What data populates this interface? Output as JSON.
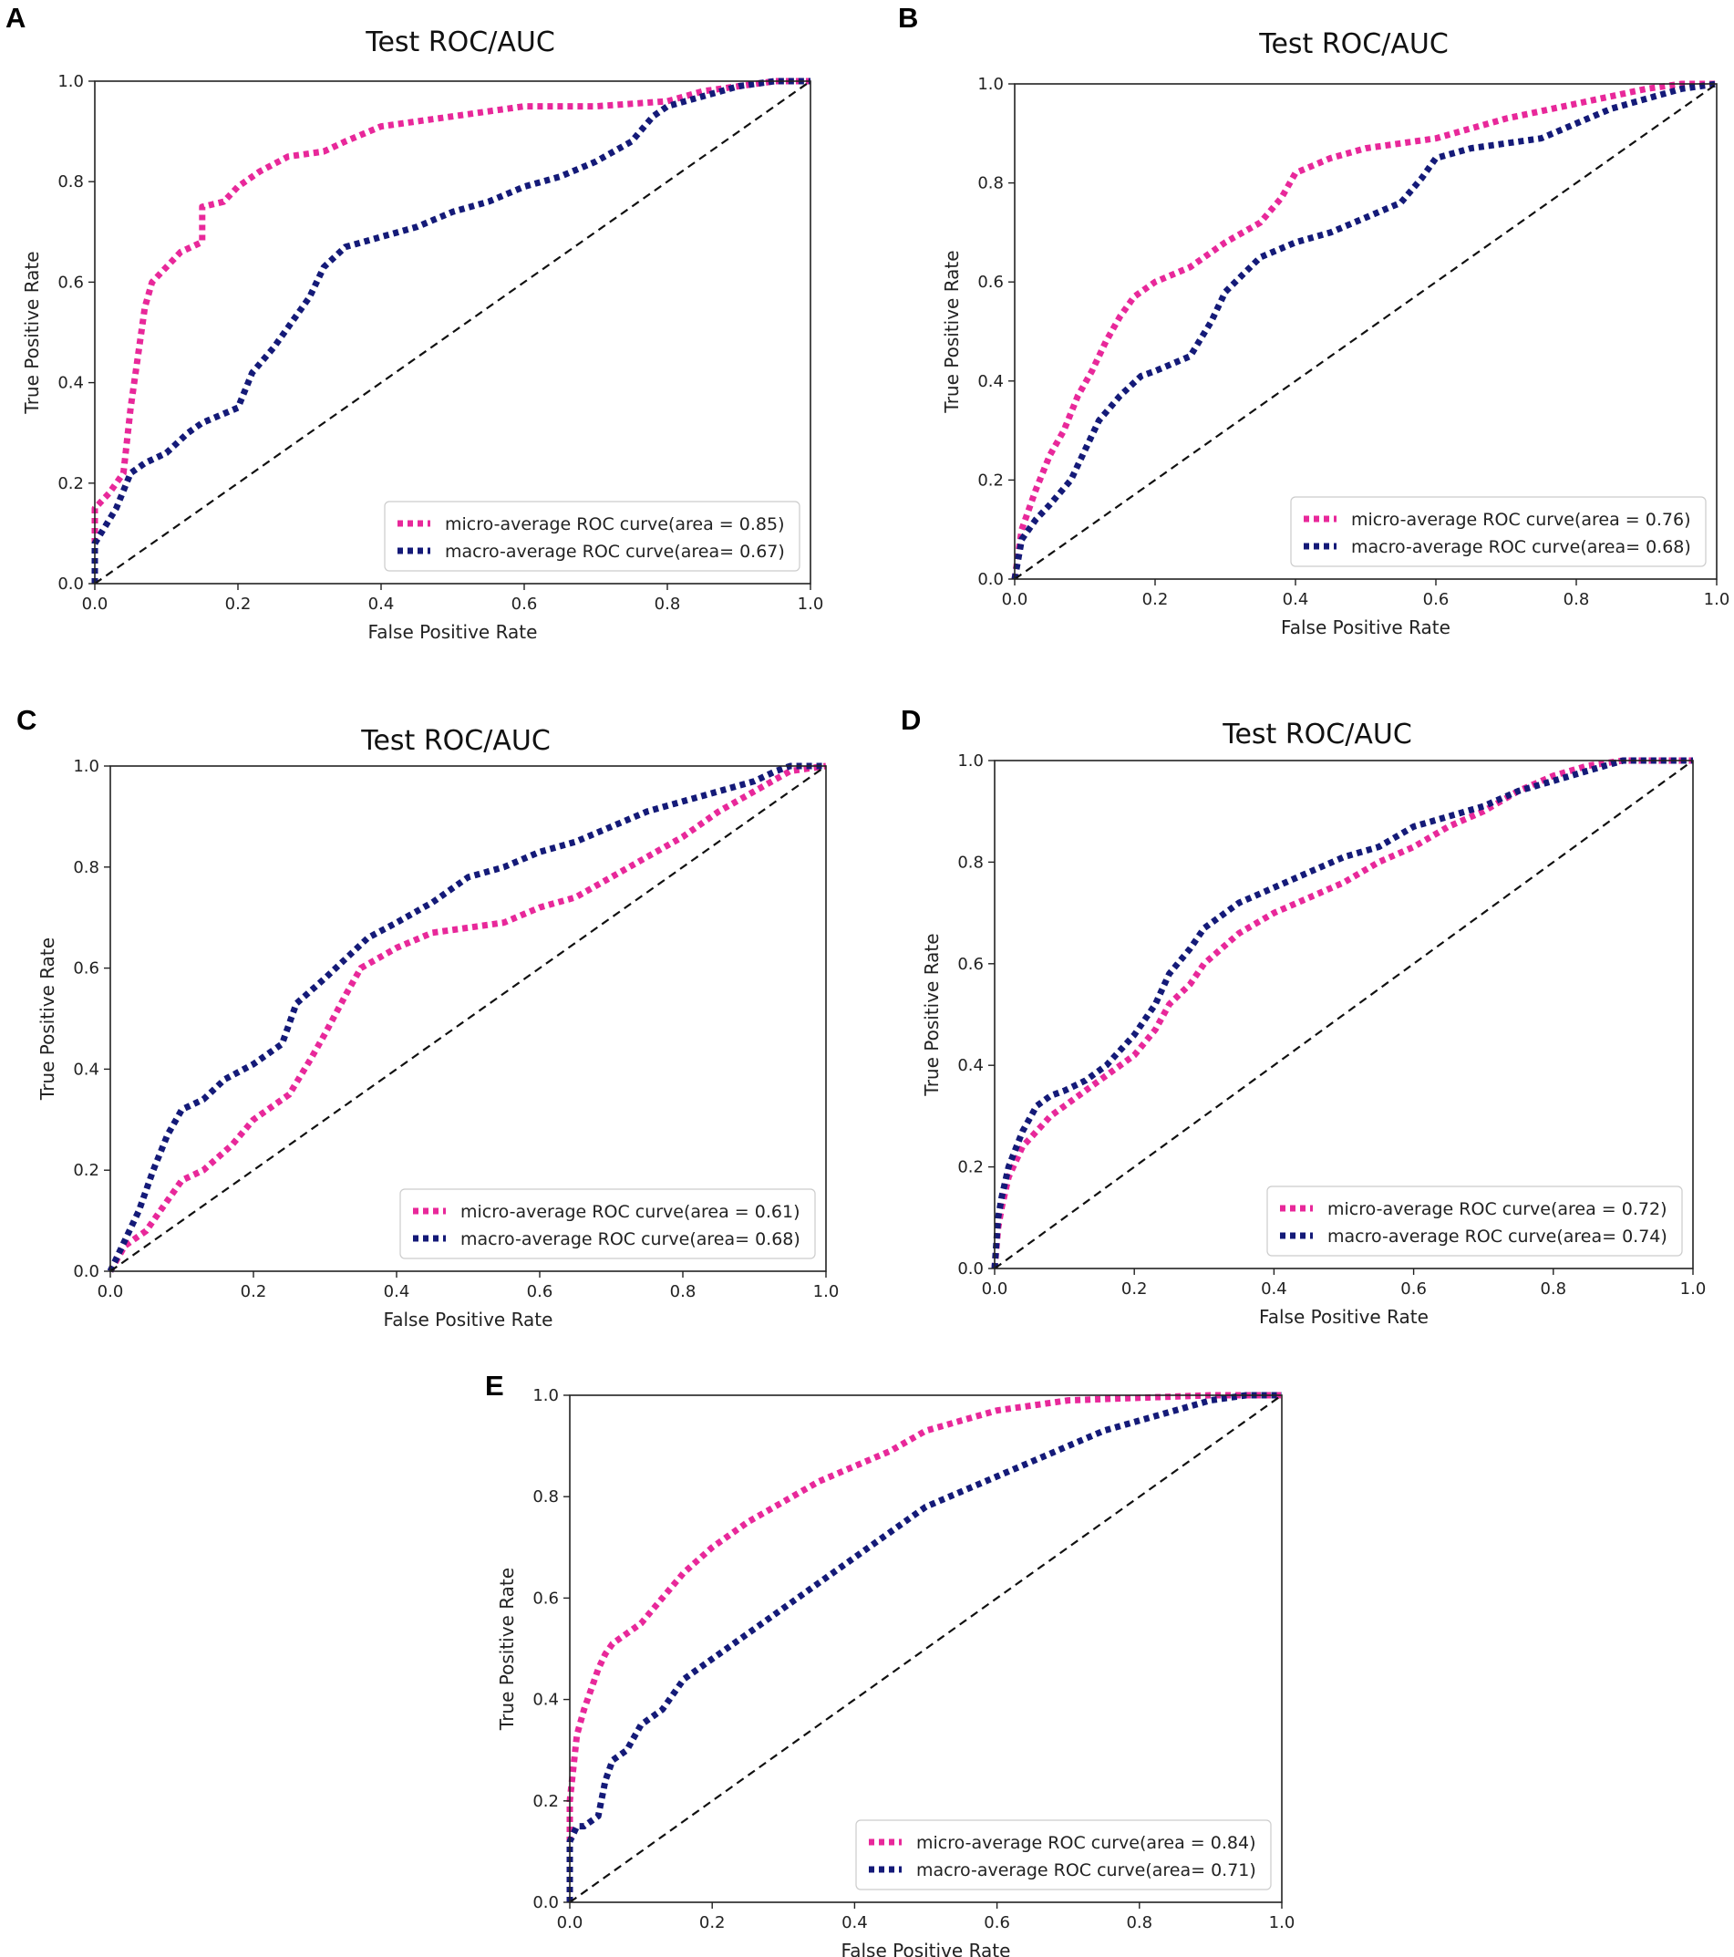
{
  "figure": {
    "description_panels": [
      "A",
      "B",
      "C",
      "D",
      "E"
    ]
  },
  "colors": {
    "micro": "#e8289a",
    "macro": "#141a78",
    "diagonal": "#111111",
    "frame": "#222222"
  },
  "chart_data": [
    {
      "panel": "A",
      "type": "line",
      "title": "Test ROC/AUC",
      "xlabel": "False Positive Rate",
      "ylabel": "True Positive Rate",
      "xlim": [
        0,
        1
      ],
      "ylim": [
        0,
        1
      ],
      "xticks": [
        "0.0",
        "0.2",
        "0.4",
        "0.6",
        "0.8",
        "1.0"
      ],
      "yticks": [
        "0.0",
        "0.2",
        "0.4",
        "0.6",
        "0.8",
        "1.0"
      ],
      "legend_position": "lower-right",
      "series": [
        {
          "name": "micro-average ROC curve(area = 0.85)",
          "style": "dotted",
          "x": [
            0,
            0,
            0.02,
            0.04,
            0.05,
            0.06,
            0.07,
            0.08,
            0.1,
            0.12,
            0.15,
            0.15,
            0.18,
            0.2,
            0.23,
            0.27,
            0.32,
            0.35,
            0.4,
            0.45,
            0.5,
            0.6,
            0.7,
            0.8,
            0.85,
            0.9,
            0.95,
            1.0
          ],
          "y": [
            0,
            0.15,
            0.18,
            0.22,
            0.35,
            0.45,
            0.55,
            0.6,
            0.63,
            0.66,
            0.68,
            0.75,
            0.76,
            0.79,
            0.82,
            0.85,
            0.86,
            0.88,
            0.91,
            0.92,
            0.93,
            0.95,
            0.95,
            0.96,
            0.98,
            0.99,
            1.0,
            1.0
          ]
        },
        {
          "name": "macro-average ROC curve(area= 0.67)",
          "style": "dotted",
          "x": [
            0,
            0,
            0.03,
            0.05,
            0.07,
            0.1,
            0.13,
            0.15,
            0.2,
            0.22,
            0.25,
            0.3,
            0.32,
            0.35,
            0.4,
            0.45,
            0.5,
            0.55,
            0.6,
            0.65,
            0.7,
            0.75,
            0.78,
            0.8,
            0.85,
            0.9,
            0.95,
            1.0
          ],
          "y": [
            0,
            0.08,
            0.15,
            0.22,
            0.24,
            0.26,
            0.3,
            0.32,
            0.35,
            0.42,
            0.47,
            0.57,
            0.63,
            0.67,
            0.69,
            0.71,
            0.74,
            0.76,
            0.79,
            0.81,
            0.84,
            0.88,
            0.93,
            0.95,
            0.97,
            0.99,
            1.0,
            1.0
          ]
        },
        {
          "name": "chance",
          "style": "dashed",
          "x": [
            0,
            1
          ],
          "y": [
            0,
            1
          ]
        }
      ]
    },
    {
      "panel": "B",
      "type": "line",
      "title": "Test ROC/AUC",
      "xlabel": "False Positive Rate",
      "ylabel": "True Positive Rate",
      "xlim": [
        0,
        1
      ],
      "ylim": [
        0,
        1
      ],
      "xticks": [
        "0.0",
        "0.2",
        "0.4",
        "0.6",
        "0.8",
        "1.0"
      ],
      "yticks": [
        "0.0",
        "0.2",
        "0.4",
        "0.6",
        "0.8",
        "1.0"
      ],
      "legend_position": "lower-right",
      "series": [
        {
          "name": "micro-average ROC curve(area = 0.76)",
          "style": "dotted",
          "x": [
            0,
            0.01,
            0.03,
            0.05,
            0.07,
            0.09,
            0.11,
            0.13,
            0.15,
            0.17,
            0.2,
            0.25,
            0.3,
            0.35,
            0.38,
            0.4,
            0.45,
            0.5,
            0.55,
            0.6,
            0.7,
            0.8,
            0.9,
            0.95,
            1.0
          ],
          "y": [
            0,
            0.1,
            0.18,
            0.25,
            0.3,
            0.37,
            0.42,
            0.48,
            0.53,
            0.57,
            0.6,
            0.63,
            0.68,
            0.72,
            0.77,
            0.82,
            0.85,
            0.87,
            0.88,
            0.89,
            0.93,
            0.96,
            0.99,
            1.0,
            1.0
          ]
        },
        {
          "name": "macro-average ROC curve(area= 0.68)",
          "style": "dotted",
          "x": [
            0,
            0.01,
            0.03,
            0.05,
            0.08,
            0.1,
            0.12,
            0.15,
            0.18,
            0.2,
            0.25,
            0.28,
            0.3,
            0.35,
            0.4,
            0.45,
            0.5,
            0.55,
            0.58,
            0.6,
            0.65,
            0.7,
            0.75,
            0.8,
            0.85,
            0.9,
            0.95,
            1.0
          ],
          "y": [
            0,
            0.08,
            0.12,
            0.15,
            0.2,
            0.26,
            0.32,
            0.37,
            0.41,
            0.42,
            0.45,
            0.52,
            0.58,
            0.65,
            0.68,
            0.7,
            0.73,
            0.76,
            0.81,
            0.85,
            0.87,
            0.88,
            0.89,
            0.92,
            0.95,
            0.97,
            0.99,
            1.0
          ]
        },
        {
          "name": "chance",
          "style": "dashed",
          "x": [
            0,
            1
          ],
          "y": [
            0,
            1
          ]
        }
      ]
    },
    {
      "panel": "C",
      "type": "line",
      "title": "Test ROC/AUC",
      "xlabel": "False Positive Rate",
      "ylabel": "True Positive Rate",
      "xlim": [
        0,
        1
      ],
      "ylim": [
        0,
        1
      ],
      "xticks": [
        "0.0",
        "0.2",
        "0.4",
        "0.6",
        "0.8",
        "1.0"
      ],
      "yticks": [
        "0.0",
        "0.2",
        "0.4",
        "0.6",
        "0.8",
        "1.0"
      ],
      "legend_position": "lower-right",
      "series": [
        {
          "name": "micro-average ROC curve(area = 0.61)",
          "style": "dotted",
          "x": [
            0,
            0.02,
            0.05,
            0.08,
            0.1,
            0.13,
            0.17,
            0.2,
            0.25,
            0.28,
            0.3,
            0.33,
            0.35,
            0.4,
            0.45,
            0.5,
            0.55,
            0.6,
            0.65,
            0.7,
            0.75,
            0.8,
            0.85,
            0.9,
            0.95,
            1.0
          ],
          "y": [
            0,
            0.05,
            0.08,
            0.14,
            0.18,
            0.2,
            0.25,
            0.3,
            0.35,
            0.42,
            0.47,
            0.55,
            0.6,
            0.64,
            0.67,
            0.68,
            0.69,
            0.72,
            0.74,
            0.78,
            0.82,
            0.86,
            0.91,
            0.95,
            0.99,
            1.0
          ]
        },
        {
          "name": "macro-average ROC curve(area= 0.68)",
          "style": "dotted",
          "x": [
            0,
            0.02,
            0.04,
            0.06,
            0.08,
            0.1,
            0.13,
            0.16,
            0.2,
            0.24,
            0.26,
            0.3,
            0.33,
            0.36,
            0.4,
            0.45,
            0.5,
            0.55,
            0.6,
            0.65,
            0.7,
            0.75,
            0.8,
            0.85,
            0.9,
            0.93,
            0.95,
            1.0
          ],
          "y": [
            0,
            0.06,
            0.12,
            0.2,
            0.27,
            0.32,
            0.34,
            0.38,
            0.41,
            0.45,
            0.53,
            0.58,
            0.62,
            0.66,
            0.69,
            0.73,
            0.78,
            0.8,
            0.83,
            0.85,
            0.88,
            0.91,
            0.93,
            0.95,
            0.97,
            0.99,
            1.0,
            1.0
          ]
        },
        {
          "name": "chance",
          "style": "dashed",
          "x": [
            0,
            1
          ],
          "y": [
            0,
            1
          ]
        }
      ]
    },
    {
      "panel": "D",
      "type": "line",
      "title": "Test ROC/AUC",
      "xlabel": "False Positive Rate",
      "ylabel": "True Positive Rate",
      "xlim": [
        0,
        1
      ],
      "ylim": [
        0,
        1
      ],
      "xticks": [
        "0.0",
        "0.2",
        "0.4",
        "0.6",
        "0.8",
        "1.0"
      ],
      "yticks": [
        "0.0",
        "0.2",
        "0.4",
        "0.6",
        "0.8",
        "1.0"
      ],
      "legend_position": "lower-right",
      "series": [
        {
          "name": "micro-average ROC curve(area = 0.72)",
          "style": "dotted",
          "x": [
            0,
            0.005,
            0.01,
            0.02,
            0.04,
            0.06,
            0.08,
            0.1,
            0.13,
            0.16,
            0.2,
            0.23,
            0.25,
            0.28,
            0.3,
            0.35,
            0.4,
            0.45,
            0.5,
            0.55,
            0.6,
            0.65,
            0.7,
            0.75,
            0.8,
            0.85,
            0.9,
            0.95,
            1.0
          ],
          "y": [
            0,
            0.08,
            0.12,
            0.18,
            0.24,
            0.27,
            0.3,
            0.32,
            0.35,
            0.38,
            0.42,
            0.47,
            0.52,
            0.56,
            0.6,
            0.66,
            0.7,
            0.73,
            0.76,
            0.8,
            0.83,
            0.87,
            0.9,
            0.94,
            0.97,
            0.99,
            1.0,
            1.0,
            1.0
          ]
        },
        {
          "name": "macro-average ROC curve(area= 0.74)",
          "style": "dotted",
          "x": [
            0,
            0.005,
            0.01,
            0.02,
            0.04,
            0.06,
            0.08,
            0.1,
            0.13,
            0.16,
            0.2,
            0.23,
            0.25,
            0.28,
            0.3,
            0.35,
            0.4,
            0.45,
            0.5,
            0.55,
            0.6,
            0.65,
            0.7,
            0.75,
            0.8,
            0.85,
            0.9,
            0.95,
            1.0
          ],
          "y": [
            0,
            0.1,
            0.14,
            0.2,
            0.27,
            0.32,
            0.34,
            0.35,
            0.37,
            0.4,
            0.46,
            0.52,
            0.58,
            0.63,
            0.67,
            0.72,
            0.75,
            0.78,
            0.81,
            0.83,
            0.87,
            0.89,
            0.91,
            0.94,
            0.96,
            0.98,
            1.0,
            1.0,
            1.0
          ]
        },
        {
          "name": "chance",
          "style": "dashed",
          "x": [
            0,
            1
          ],
          "y": [
            0,
            1
          ]
        }
      ]
    },
    {
      "panel": "E",
      "type": "line",
      "title": "",
      "xlabel": "False Positive Rate",
      "ylabel": "True Positive Rate",
      "xlim": [
        0,
        1
      ],
      "ylim": [
        0,
        1
      ],
      "xticks": [
        "0.0",
        "0.2",
        "0.4",
        "0.6",
        "0.8",
        "1.0"
      ],
      "yticks": [
        "0.0",
        "0.2",
        "0.4",
        "0.6",
        "0.8",
        "1.0"
      ],
      "legend_position": "lower-right",
      "series": [
        {
          "name": "micro-average ROC curve(area = 0.84)",
          "style": "dotted",
          "x": [
            0,
            0,
            0.01,
            0.02,
            0.03,
            0.04,
            0.05,
            0.06,
            0.08,
            0.1,
            0.13,
            0.16,
            0.2,
            0.25,
            0.3,
            0.35,
            0.4,
            0.45,
            0.5,
            0.55,
            0.6,
            0.7,
            0.8,
            0.9,
            1.0
          ],
          "y": [
            0,
            0.2,
            0.33,
            0.38,
            0.42,
            0.46,
            0.49,
            0.51,
            0.53,
            0.55,
            0.6,
            0.65,
            0.7,
            0.75,
            0.79,
            0.83,
            0.86,
            0.89,
            0.93,
            0.95,
            0.97,
            0.99,
            0.995,
            1.0,
            1.0
          ]
        },
        {
          "name": "macro-average ROC curve(area= 0.71)",
          "style": "dotted",
          "x": [
            0,
            0,
            0.01,
            0.02,
            0.03,
            0.04,
            0.05,
            0.06,
            0.08,
            0.1,
            0.13,
            0.16,
            0.2,
            0.25,
            0.3,
            0.35,
            0.4,
            0.45,
            0.5,
            0.55,
            0.6,
            0.65,
            0.7,
            0.75,
            0.8,
            0.85,
            0.9,
            0.95,
            1.0
          ],
          "y": [
            0,
            0.12,
            0.15,
            0.15,
            0.16,
            0.17,
            0.24,
            0.28,
            0.3,
            0.35,
            0.38,
            0.44,
            0.48,
            0.53,
            0.58,
            0.63,
            0.68,
            0.73,
            0.78,
            0.81,
            0.84,
            0.87,
            0.9,
            0.93,
            0.95,
            0.97,
            0.99,
            1.0,
            1.0
          ]
        },
        {
          "name": "chance",
          "style": "dashed",
          "x": [
            0,
            1
          ],
          "y": [
            0,
            1
          ]
        }
      ]
    }
  ]
}
